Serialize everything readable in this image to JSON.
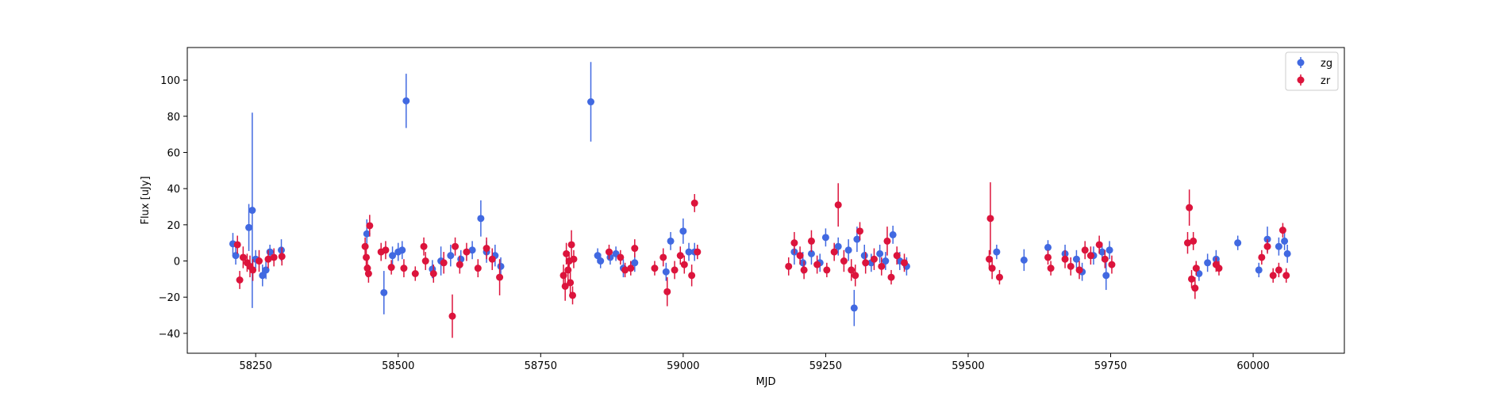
{
  "chart_data": {
    "type": "scatter",
    "xlabel": "MJD",
    "ylabel": "Flux [uJy]",
    "xlim": [
      58130,
      60160
    ],
    "ylim": [
      -51,
      118
    ],
    "xticks": [
      58250,
      58500,
      58750,
      59000,
      59250,
      59500,
      59750,
      60000
    ],
    "yticks": [
      -40,
      -20,
      0,
      20,
      40,
      60,
      80,
      100
    ],
    "grid": false,
    "legend_position": "top-right",
    "series": [
      {
        "name": "zg",
        "color": "#4169e1",
        "points": [
          [
            58210,
            9.5,
            6
          ],
          [
            58215,
            3,
            5
          ],
          [
            58238,
            18.5,
            13
          ],
          [
            58244,
            28,
            54
          ],
          [
            58250,
            1,
            5
          ],
          [
            58262,
            -8,
            6
          ],
          [
            58268,
            -5,
            5
          ],
          [
            58275,
            5,
            4
          ],
          [
            58295,
            6,
            6
          ],
          [
            58445,
            15,
            8
          ],
          [
            58475,
            -17.5,
            12
          ],
          [
            58490,
            3,
            5
          ],
          [
            58500,
            5,
            5
          ],
          [
            58507,
            6,
            5
          ],
          [
            58514,
            88.5,
            15
          ],
          [
            58560,
            -4.5,
            5
          ],
          [
            58575,
            0,
            8
          ],
          [
            58592,
            3,
            6
          ],
          [
            58610,
            1,
            5
          ],
          [
            58630,
            6,
            5
          ],
          [
            58645,
            23.5,
            10
          ],
          [
            58655,
            5,
            6
          ],
          [
            58670,
            3,
            6
          ],
          [
            58680,
            -3,
            5
          ],
          [
            58838,
            88,
            22
          ],
          [
            58850,
            3,
            4
          ],
          [
            58855,
            0,
            4
          ],
          [
            58872,
            2,
            4
          ],
          [
            58882,
            4,
            4
          ],
          [
            58895,
            -4,
            5
          ],
          [
            58915,
            -1,
            5
          ],
          [
            58970,
            -6,
            5
          ],
          [
            58978,
            11,
            5
          ],
          [
            59000,
            16.5,
            7
          ],
          [
            59010,
            5,
            5
          ],
          [
            59020,
            5,
            5
          ],
          [
            59195,
            5,
            7
          ],
          [
            59210,
            -1,
            6
          ],
          [
            59225,
            4,
            6
          ],
          [
            59240,
            -1,
            5
          ],
          [
            59250,
            13,
            5
          ],
          [
            59272,
            8,
            5
          ],
          [
            59290,
            6,
            6
          ],
          [
            59305,
            12,
            7
          ],
          [
            59300,
            -26,
            10
          ],
          [
            59318,
            3,
            6
          ],
          [
            59330,
            -1,
            5
          ],
          [
            59345,
            4,
            5
          ],
          [
            59355,
            0,
            5
          ],
          [
            59368,
            14.5,
            5
          ],
          [
            59380,
            0,
            5
          ],
          [
            59392,
            -3,
            5
          ],
          [
            59550,
            5,
            4
          ],
          [
            59598,
            0.5,
            6
          ],
          [
            59640,
            7.5,
            4
          ],
          [
            59670,
            4,
            5
          ],
          [
            59690,
            1,
            5
          ],
          [
            59700,
            -6,
            5
          ],
          [
            59720,
            3,
            5
          ],
          [
            59735,
            5,
            5
          ],
          [
            59742,
            -8,
            8
          ],
          [
            59748,
            6,
            5
          ],
          [
            59905,
            -7,
            4
          ],
          [
            59920,
            -1,
            5
          ],
          [
            59935,
            1,
            5
          ],
          [
            59973,
            10,
            4
          ],
          [
            60010,
            -5,
            4
          ],
          [
            60025,
            12,
            7
          ],
          [
            60045,
            8,
            5
          ],
          [
            60055,
            11,
            5
          ],
          [
            60060,
            4,
            5
          ]
        ]
      },
      {
        "name": "zr",
        "color": "#dc143c",
        "points": [
          [
            58218,
            9,
            5
          ],
          [
            58222,
            -10.5,
            5
          ],
          [
            58228,
            2,
            6
          ],
          [
            58235,
            -1,
            5
          ],
          [
            58240,
            -3,
            6
          ],
          [
            58245,
            -5,
            6
          ],
          [
            58256,
            0,
            6
          ],
          [
            58272,
            1,
            5
          ],
          [
            58282,
            2,
            5
          ],
          [
            58296,
            2.5,
            5
          ],
          [
            58442,
            8,
            5
          ],
          [
            58444,
            2,
            5
          ],
          [
            58446,
            -4,
            5
          ],
          [
            58448,
            -7,
            5
          ],
          [
            58450,
            19.5,
            6
          ],
          [
            58470,
            5,
            5
          ],
          [
            58478,
            6,
            5
          ],
          [
            58488,
            -3.5,
            4
          ],
          [
            58510,
            -4,
            5
          ],
          [
            58530,
            -7,
            4
          ],
          [
            58545,
            8,
            5
          ],
          [
            58548,
            0,
            5
          ],
          [
            58562,
            -7,
            5
          ],
          [
            58580,
            -1,
            6
          ],
          [
            58595,
            -30.5,
            12
          ],
          [
            58600,
            8,
            5
          ],
          [
            58608,
            -2,
            5
          ],
          [
            58620,
            5,
            5
          ],
          [
            58640,
            -4,
            5
          ],
          [
            58655,
            7,
            6
          ],
          [
            58665,
            1,
            6
          ],
          [
            58678,
            -9,
            10
          ],
          [
            58790,
            -8,
            6
          ],
          [
            58793,
            -14,
            8
          ],
          [
            58795,
            4,
            6
          ],
          [
            58798,
            -5,
            6
          ],
          [
            58800,
            0,
            5
          ],
          [
            58802,
            -12,
            8
          ],
          [
            58804,
            9,
            8
          ],
          [
            58806,
            -19,
            5
          ],
          [
            58808,
            1,
            5
          ],
          [
            58870,
            5,
            4
          ],
          [
            58890,
            2,
            4
          ],
          [
            58898,
            -5,
            4
          ],
          [
            58908,
            -4,
            4
          ],
          [
            58915,
            7,
            5
          ],
          [
            58950,
            -4,
            4
          ],
          [
            58965,
            2,
            5
          ],
          [
            58972,
            -17,
            8
          ],
          [
            58985,
            -5,
            5
          ],
          [
            58995,
            3,
            5
          ],
          [
            59002,
            -2,
            5
          ],
          [
            59015,
            -8,
            6
          ],
          [
            59020,
            32,
            5
          ],
          [
            59025,
            5,
            4
          ],
          [
            59185,
            -3,
            5
          ],
          [
            59195,
            10,
            6
          ],
          [
            59205,
            3,
            5
          ],
          [
            59212,
            -5,
            5
          ],
          [
            59225,
            11,
            6
          ],
          [
            59235,
            -2,
            5
          ],
          [
            59252,
            -5,
            4
          ],
          [
            59265,
            5,
            5
          ],
          [
            59272,
            31,
            12
          ],
          [
            59282,
            0,
            6
          ],
          [
            59295,
            -5,
            6
          ],
          [
            59302,
            -8,
            6
          ],
          [
            59310,
            16.5,
            5
          ],
          [
            59320,
            -1,
            6
          ],
          [
            59335,
            1,
            6
          ],
          [
            59348,
            -3,
            5
          ],
          [
            59358,
            11,
            8
          ],
          [
            59365,
            -9,
            4
          ],
          [
            59375,
            3,
            5
          ],
          [
            59388,
            -1,
            5
          ],
          [
            59537,
            1,
            5
          ],
          [
            59539,
            23.5,
            20
          ],
          [
            59542,
            -4,
            6
          ],
          [
            59555,
            -9,
            4
          ],
          [
            59640,
            2,
            4
          ],
          [
            59645,
            -4,
            4
          ],
          [
            59670,
            1,
            5
          ],
          [
            59680,
            -3,
            5
          ],
          [
            59695,
            -5,
            5
          ],
          [
            59705,
            6,
            5
          ],
          [
            59715,
            3,
            5
          ],
          [
            59730,
            9,
            5
          ],
          [
            59740,
            1,
            5
          ],
          [
            59752,
            -2,
            5
          ],
          [
            59885,
            10,
            6
          ],
          [
            59888,
            29.5,
            10
          ],
          [
            59892,
            -10,
            5
          ],
          [
            59895,
            11,
            5
          ],
          [
            59898,
            -15,
            6
          ],
          [
            59900,
            -4,
            4
          ],
          [
            59935,
            -2,
            4
          ],
          [
            59940,
            -4,
            4
          ],
          [
            60015,
            2,
            4
          ],
          [
            60025,
            8,
            4
          ],
          [
            60035,
            -8,
            4
          ],
          [
            60045,
            -5,
            4
          ],
          [
            60052,
            17,
            4
          ],
          [
            60058,
            -8,
            4
          ]
        ]
      }
    ]
  }
}
